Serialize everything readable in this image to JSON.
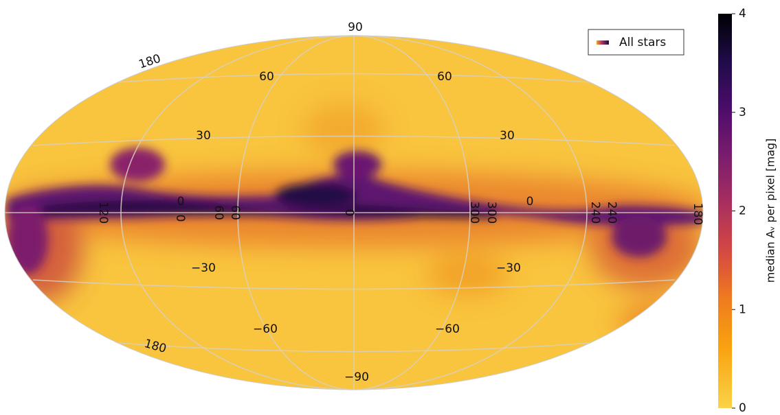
{
  "legend": {
    "label": "All stars"
  },
  "graticule": {
    "labels": [
      "90",
      "60",
      "60",
      "30",
      "30",
      "0",
      "0",
      "−30",
      "−30",
      "−60",
      "−60",
      "−90",
      "180",
      "180",
      "120",
      "60",
      "60",
      "0",
      "0",
      "300",
      "300",
      "240",
      "240",
      "180"
    ]
  },
  "colorbar": {
    "label": "median Aᵥ per pixel   [mag]",
    "lim": [
      0,
      4
    ],
    "ticks": [
      0,
      1,
      2,
      3,
      4
    ]
  }
}
